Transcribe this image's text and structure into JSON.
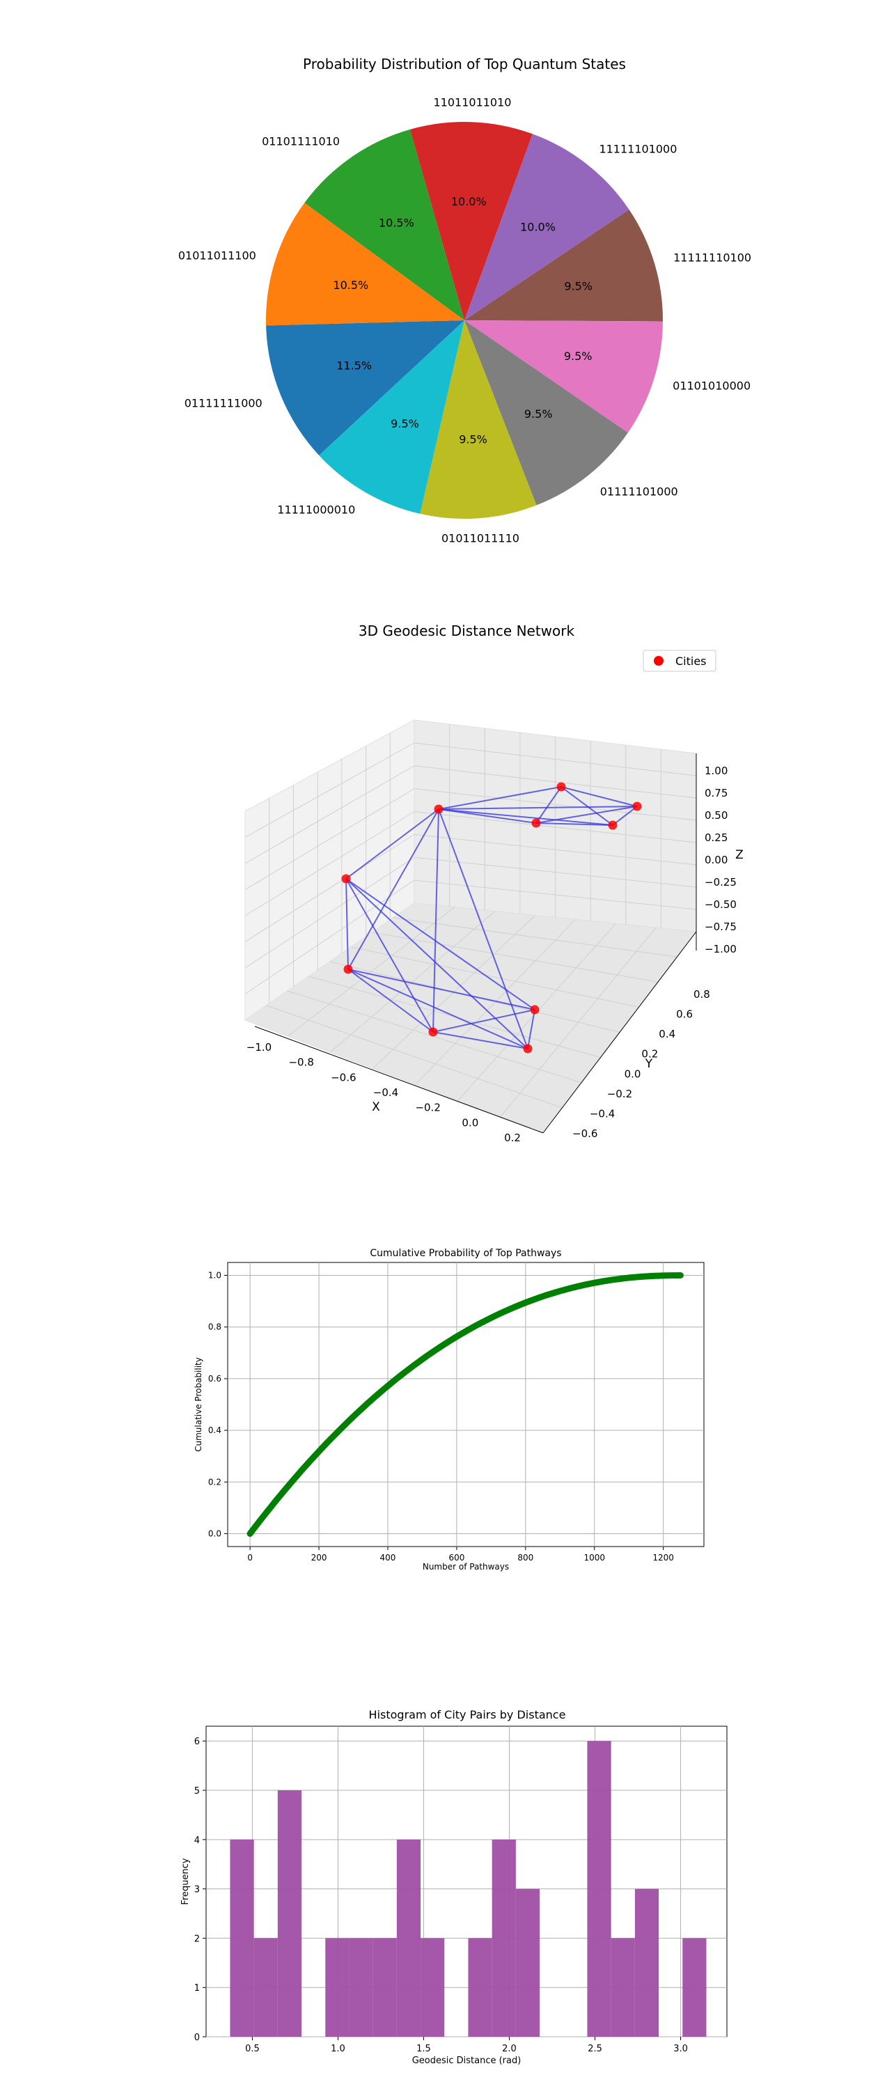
{
  "chart_data": [
    {
      "type": "pie",
      "title": "Probability Distribution of Top Quantum States",
      "labels": [
        "01111111000",
        "01011011100",
        "01101111010",
        "11011011010",
        "11111101000",
        "11111110100",
        "01101010000",
        "01111101000",
        "01011011110",
        "11111000010"
      ],
      "values": [
        11.5,
        10.5,
        10.5,
        10.0,
        10.0,
        9.5,
        9.5,
        9.5,
        9.5,
        9.5
      ],
      "value_labels": [
        "11.5%",
        "10.5%",
        "10.5%",
        "10.0%",
        "10.0%",
        "9.5%",
        "9.5%",
        "9.5%",
        "9.5%",
        "9.5%"
      ],
      "colors": [
        "#1f77b4",
        "#ff7f0e",
        "#2ca02c",
        "#d62728",
        "#9467bd",
        "#8c564b",
        "#e377c2",
        "#7f7f7f",
        "#bcbd22",
        "#17becf"
      ]
    },
    {
      "type": "scatter",
      "title": "3D Geodesic Distance Network",
      "legend": [
        "Cities"
      ],
      "legend_position": "top-right",
      "xlabel": "X",
      "ylabel": "Y",
      "zlabel": "Z",
      "x_ticks": [
        "−1.0",
        "−0.8",
        "−0.6",
        "−0.4",
        "−0.2",
        "0.0",
        "0.2"
      ],
      "y_ticks": [
        "−0.6",
        "−0.4",
        "−0.2",
        "0.0",
        "0.2",
        "0.4",
        "0.6",
        "0.8"
      ],
      "z_ticks": [
        "−1.00",
        "−0.75",
        "−0.50",
        "−0.25",
        "0.00",
        "0.25",
        "0.50",
        "0.75",
        "1.00"
      ],
      "point_color": "#ff0000",
      "edge_color": "#3333dd",
      "points": 10
    },
    {
      "type": "line",
      "title": "Cumulative Probability of Top Pathways",
      "xlabel": "Number of Pathways",
      "ylabel": "Cumulative Probability",
      "x_ticks": [
        "0",
        "200",
        "400",
        "600",
        "800",
        "1000",
        "1200"
      ],
      "y_ticks": [
        "0.0",
        "0.2",
        "0.4",
        "0.6",
        "0.8",
        "1.0"
      ],
      "xlim": [
        -65,
        1318
      ],
      "ylim": [
        -0.05,
        1.05
      ],
      "series": [
        {
          "n": 1250,
          "start": 0.0,
          "end": 1.0
        }
      ],
      "color": "#008000",
      "grid": true
    },
    {
      "type": "bar",
      "title": "Histogram of City Pairs by Distance",
      "xlabel": "Geodesic Distance (rad)",
      "ylabel": "Frequency",
      "x_ticks": [
        "0.5",
        "1.0",
        "1.5",
        "2.0",
        "2.5",
        "3.0"
      ],
      "y_ticks": [
        "0",
        "1",
        "2",
        "3",
        "4",
        "5",
        "6"
      ],
      "xlim": [
        0.23,
        3.27
      ],
      "ylim": [
        0,
        6.3
      ],
      "bin_start": 0.37,
      "bin_width": 0.139,
      "values": [
        4,
        2,
        5,
        0,
        2,
        2,
        2,
        4,
        2,
        0,
        2,
        4,
        3,
        0,
        0,
        6,
        2,
        3,
        0,
        2
      ],
      "color": "#a04ea5",
      "grid": true
    }
  ]
}
